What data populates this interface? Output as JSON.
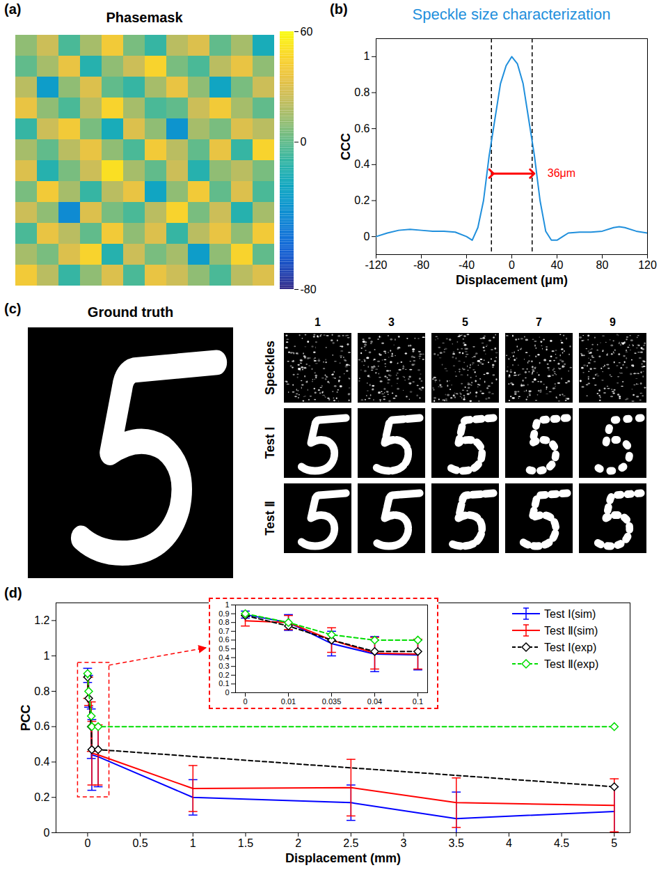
{
  "chart_data": [
    {
      "type": "heatmap",
      "panel": "(a)",
      "title": "Phasemask",
      "tick_labels": false,
      "cells": [
        [
          10,
          25,
          -5,
          15,
          40,
          5,
          -10,
          20,
          30,
          0,
          15,
          -20
        ],
        [
          0,
          15,
          35,
          -15,
          10,
          25,
          45,
          5,
          -5,
          20,
          35,
          10
        ],
        [
          20,
          -30,
          10,
          30,
          0,
          -10,
          15,
          35,
          10,
          -25,
          5,
          25
        ],
        [
          35,
          10,
          -5,
          20,
          45,
          15,
          -5,
          0,
          25,
          40,
          15,
          0
        ],
        [
          -10,
          25,
          40,
          5,
          -20,
          30,
          10,
          -35,
          15,
          5,
          30,
          20
        ],
        [
          15,
          0,
          20,
          35,
          10,
          -5,
          40,
          20,
          0,
          35,
          -10,
          45
        ],
        [
          30,
          -15,
          5,
          25,
          50,
          15,
          0,
          25,
          -15,
          10,
          20,
          5
        ],
        [
          5,
          40,
          15,
          -10,
          20,
          35,
          -25,
          10,
          40,
          0,
          30,
          -5
        ],
        [
          25,
          10,
          -40,
          30,
          5,
          -5,
          20,
          45,
          5,
          25,
          -15,
          15
        ],
        [
          -5,
          35,
          20,
          0,
          40,
          10,
          30,
          -10,
          20,
          35,
          10,
          40
        ],
        [
          15,
          5,
          30,
          45,
          -15,
          25,
          5,
          15,
          -30,
          10,
          45,
          0
        ],
        [
          40,
          20,
          -10,
          10,
          30,
          -5,
          35,
          25,
          10,
          -5,
          20,
          30
        ]
      ],
      "colorbar_range": [
        -80,
        60
      ],
      "colorbar_ticks": [
        60,
        0,
        -80
      ]
    },
    {
      "type": "line",
      "panel": "(b)",
      "title": "Speckle size characterization",
      "x_label": "Displacement (μm)",
      "y_label": "CCC",
      "xlim": [
        -120,
        120
      ],
      "xticks": [
        -120,
        -80,
        -40,
        0,
        40,
        80,
        120
      ],
      "ylim": [
        -0.1,
        1.1
      ],
      "yticks": [
        0,
        0.2,
        0.4,
        0.6,
        0.8,
        1
      ],
      "x": [
        -120,
        -110,
        -100,
        -90,
        -80,
        -70,
        -60,
        -50,
        -40,
        -35,
        -30,
        -25,
        -20,
        -15,
        -10,
        -5,
        0,
        5,
        10,
        15,
        20,
        25,
        30,
        35,
        40,
        45,
        50,
        60,
        70,
        80,
        90,
        95,
        100,
        110,
        120
      ],
      "values": [
        0,
        0.02,
        0.035,
        0.04,
        0.035,
        0.03,
        0.03,
        0.025,
        0,
        -0.02,
        0.05,
        0.2,
        0.45,
        0.65,
        0.85,
        0.95,
        1,
        0.96,
        0.85,
        0.65,
        0.45,
        0.2,
        0.03,
        -0.02,
        -0.02,
        0,
        0.02,
        0.025,
        0.025,
        0.03,
        0.05,
        0.055,
        0.05,
        0.03,
        0.02
      ],
      "color": "#1f8fdc",
      "annotation": {
        "text": "36μm",
        "x": [
          -18,
          18
        ],
        "color": "#ff0000"
      }
    },
    {
      "type": "image_grid",
      "panel": "(c)",
      "ground_truth_title": "Ground truth",
      "column_labels": [
        1,
        3,
        5,
        7,
        9
      ],
      "row_labels": [
        "Speckles",
        "Test Ⅰ",
        "Test Ⅱ"
      ]
    },
    {
      "type": "line",
      "panel": "(d)",
      "x_label": "Displacement (mm)",
      "y_label": "PCC",
      "xlim": [
        -0.3,
        5.15
      ],
      "xticks": [
        0,
        0.5,
        1,
        1.5,
        2,
        2.5,
        3,
        3.5,
        4,
        4.5,
        5
      ],
      "ylim": [
        0,
        1.3
      ],
      "yticks": [
        0,
        0.2,
        0.4,
        0.6,
        0.8,
        1,
        1.2
      ],
      "legend": "top-right",
      "series": [
        {
          "name": "Test Ⅰ(sim)",
          "color": "#0000ff",
          "line_style": "solid",
          "x": [
            0,
            0.01,
            0.035,
            0.04,
            0.1,
            1,
            2.5,
            3.5,
            5
          ],
          "values": [
            0.89,
            0.8,
            0.56,
            0.44,
            0.43,
            0.2,
            0.17,
            0.08,
            0.12
          ],
          "errors": [
            0.04,
            0.09,
            0.14,
            0.2,
            0.17,
            0.1,
            0.1,
            0.15,
            0.14
          ]
        },
        {
          "name": "Test Ⅱ(sim)",
          "color": "#ff0000",
          "line_style": "solid",
          "x": [
            0,
            0.01,
            0.035,
            0.04,
            0.1,
            1,
            2.5,
            3.5,
            5
          ],
          "values": [
            0.82,
            0.8,
            0.6,
            0.45,
            0.44,
            0.25,
            0.255,
            0.17,
            0.155
          ],
          "errors": [
            0.06,
            0.08,
            0.14,
            0.18,
            0.17,
            0.13,
            0.16,
            0.14,
            0.15
          ]
        },
        {
          "name": "Test Ⅰ(exp)",
          "color": "#000000",
          "line_style": "dashed",
          "marker": "diamond",
          "x": [
            0,
            0.01,
            0.035,
            0.04,
            0.1,
            5
          ],
          "values": [
            0.88,
            0.76,
            0.6,
            0.47,
            0.47,
            0.26
          ]
        },
        {
          "name": "Test Ⅱ(exp)",
          "color": "#00dd00",
          "line_style": "dashed",
          "marker": "diamond",
          "x": [
            0,
            0.01,
            0.035,
            0.04,
            0.1,
            5
          ],
          "values": [
            0.9,
            0.8,
            0.66,
            0.6,
            0.6,
            0.6
          ]
        }
      ],
      "inset": {
        "categories": [
          0,
          0.01,
          0.035,
          0.04,
          0.1
        ],
        "ylim": [
          0,
          1
        ],
        "yticks": [
          0,
          0.1,
          0.2,
          0.3,
          0.4,
          0.5,
          0.6,
          0.7,
          0.8,
          0.9,
          1
        ]
      }
    }
  ]
}
